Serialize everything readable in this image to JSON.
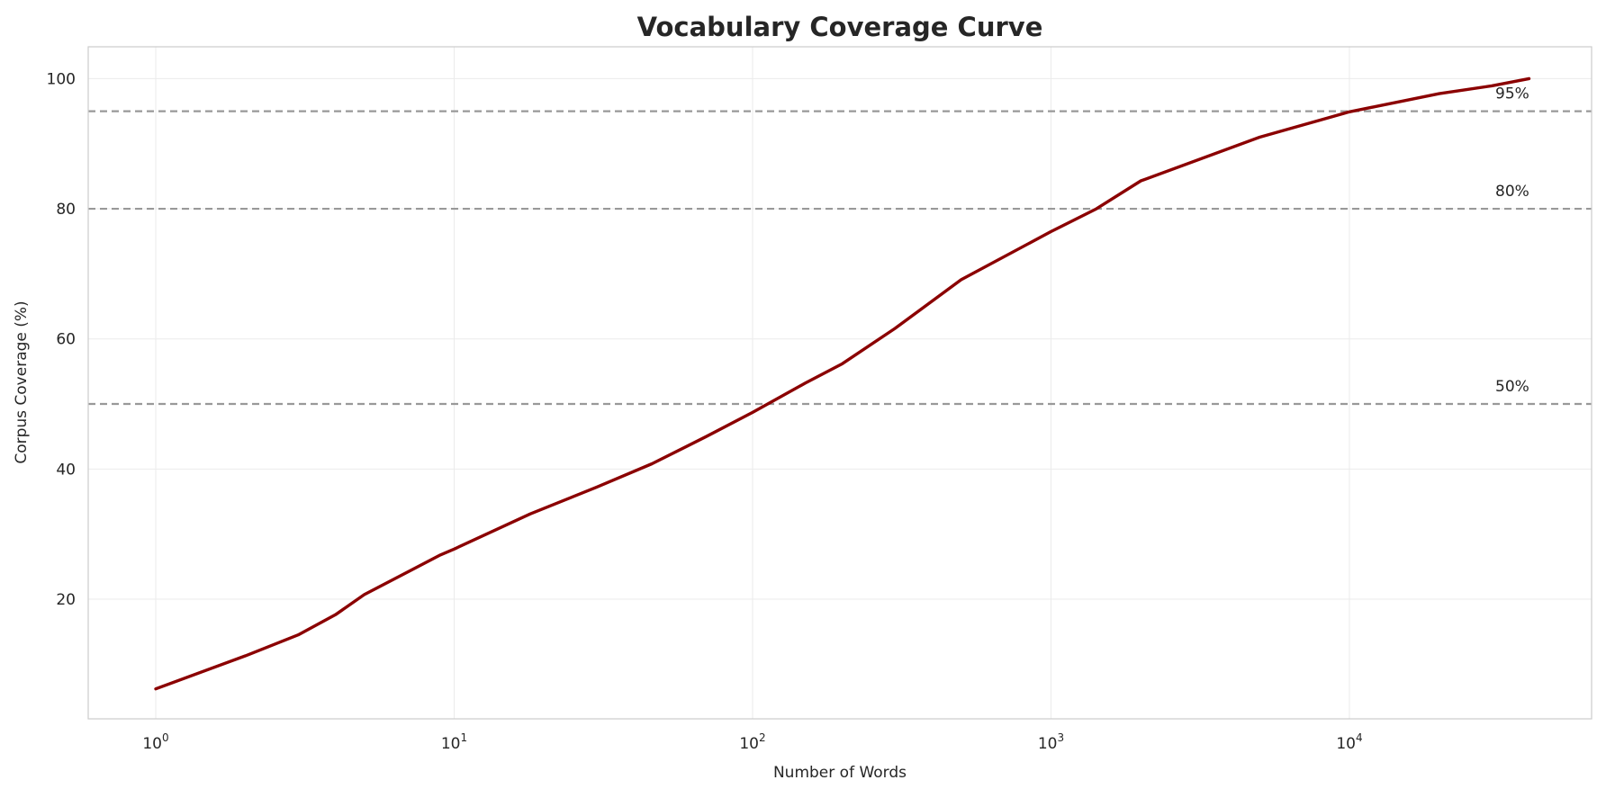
{
  "chart_data": {
    "type": "line",
    "title": "Vocabulary Coverage Curve",
    "xlabel": "Number of Words",
    "ylabel": "Corpus Coverage (%)",
    "xscale": "log",
    "xlim": [
      0.594,
      64800
    ],
    "ylim": [
      1.6,
      104.9
    ],
    "grid": true,
    "x_ticks": [
      {
        "value": 1,
        "base": "10",
        "exp": "0"
      },
      {
        "value": 10,
        "base": "10",
        "exp": "1"
      },
      {
        "value": 100,
        "base": "10",
        "exp": "2"
      },
      {
        "value": 1000,
        "base": "10",
        "exp": "3"
      },
      {
        "value": 10000,
        "base": "10",
        "exp": "4"
      }
    ],
    "y_ticks": [
      {
        "value": 20,
        "label": "20"
      },
      {
        "value": 40,
        "label": "40"
      },
      {
        "value": 60,
        "label": "60"
      },
      {
        "value": 80,
        "label": "80"
      },
      {
        "value": 100,
        "label": "100"
      }
    ],
    "series": [
      {
        "color": "#8b0000",
        "x": [
          1,
          2,
          3,
          4,
          5,
          9,
          10,
          18,
          30,
          46,
          70,
          100,
          150,
          200,
          300,
          500,
          1000,
          1419,
          2000,
          5000,
          10000,
          20000,
          30000,
          40000
        ],
        "y": [
          6.2,
          11.3,
          14.5,
          17.6,
          20.7,
          26.8,
          27.7,
          33.1,
          37.2,
          40.8,
          45.0,
          48.7,
          53.2,
          56.2,
          61.6,
          69.1,
          76.5,
          80.0,
          84.3,
          91.0,
          94.9,
          97.7,
          98.9,
          100.0
        ]
      }
    ],
    "reference_lines": [
      {
        "y": 50,
        "label": "50%",
        "color": "#999999",
        "style": "dashed"
      },
      {
        "y": 80,
        "label": "80%",
        "color": "#999999",
        "style": "dashed"
      },
      {
        "y": 95,
        "label": "95%",
        "color": "#999999",
        "style": "dashed"
      }
    ]
  }
}
